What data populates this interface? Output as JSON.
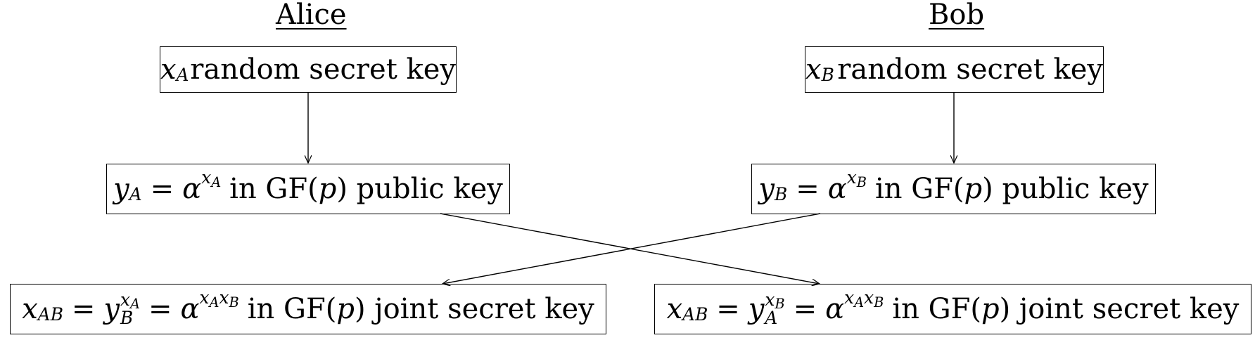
{
  "columns": {
    "alice": "Alice",
    "bob": "Bob"
  },
  "alice": {
    "secret_var": "x",
    "secret_sub": "A",
    "secret_text": "random secret key",
    "public_var": "y",
    "public_sub": "A",
    "public_eq": "=",
    "alpha": "α",
    "public_exp_var": "x",
    "public_exp_sub": "A",
    "public_text_pre": "in GF(",
    "p": "p",
    "public_text_post": ") public key",
    "joint_lhs_var": "x",
    "joint_lhs_sub": "AB",
    "joint_base_var": "y",
    "joint_base_sub": "B",
    "joint_exp_var": "x",
    "joint_exp_sub": "A",
    "joint_alpha_exp": "x",
    "joint_alpha_exp_sub1": "A",
    "joint_alpha_exp_var2": "x",
    "joint_alpha_exp_sub2": "B",
    "joint_text_pre": "in GF(",
    "joint_text_post": ") joint secret key"
  },
  "bob": {
    "secret_var": "x",
    "secret_sub": "B",
    "secret_text": "random secret key",
    "public_var": "y",
    "public_sub": "B",
    "public_eq": "=",
    "alpha": "α",
    "public_exp_var": "x",
    "public_exp_sub": "B",
    "public_text_pre": "in GF(",
    "p": "p",
    "public_text_post": ") public key",
    "joint_lhs_var": "x",
    "joint_lhs_sub": "AB",
    "joint_base_var": "y",
    "joint_base_sub": "A",
    "joint_exp_var": "x",
    "joint_exp_sub": "B",
    "joint_alpha_exp": "x",
    "joint_alpha_exp_sub1": "A",
    "joint_alpha_exp_var2": "x",
    "joint_alpha_exp_sub2": "B",
    "joint_text_pre": "in GF(",
    "joint_text_post": ") joint secret key"
  }
}
